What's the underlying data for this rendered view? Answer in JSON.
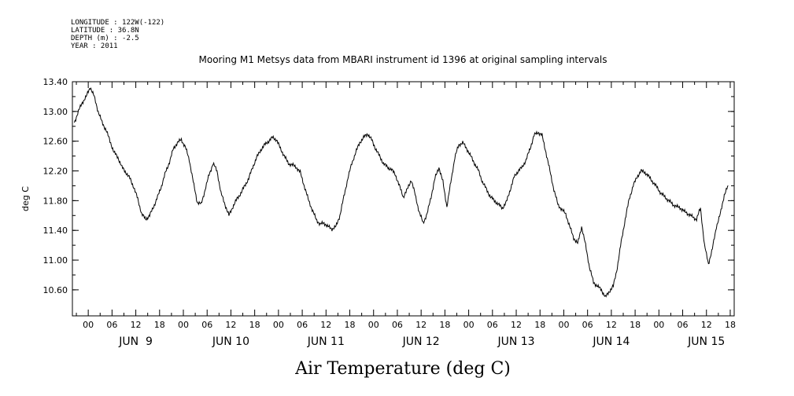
{
  "header": {
    "meta": [
      "LONGITUDE : 122W(-122)",
      "LATITUDE : 36.8N",
      "DEPTH (m) : -2.5",
      "YEAR : 2011"
    ],
    "title": "Mooring M1 Metsys data from MBARI instrument id 1396 at original sampling intervals"
  },
  "chart_data": {
    "type": "line",
    "title": "Mooring M1 Metsys data from MBARI instrument id 1396 at original sampling intervals",
    "xlabel": "Air Temperature (deg C)",
    "ylabel": "deg C",
    "x_unit": "hours since 2011-06-09 00:00",
    "xlim": [
      -4,
      163
    ],
    "ylim": [
      10.25,
      13.4
    ],
    "y_ticks": [
      13.4,
      13.0,
      12.6,
      12.2,
      11.8,
      11.4,
      11.0,
      10.6
    ],
    "y_tick_labels": [
      "13.40",
      "13.00",
      "12.60",
      "12.20",
      "11.80",
      "11.40",
      "11.00",
      "10.60"
    ],
    "x_ticks": [
      0,
      6,
      12,
      18,
      24,
      30,
      36,
      42,
      48,
      54,
      60,
      66,
      72,
      78,
      84,
      90,
      96,
      102,
      108,
      114,
      120,
      126,
      132,
      138,
      144,
      150,
      156,
      162
    ],
    "x_tick_labels": [
      "00",
      "06",
      "12",
      "18",
      "00",
      "06",
      "12",
      "18",
      "00",
      "06",
      "12",
      "18",
      "00",
      "06",
      "12",
      "18",
      "00",
      "06",
      "12",
      "18",
      "00",
      "06",
      "12",
      "18",
      "00",
      "06",
      "12",
      "18"
    ],
    "day_labels": [
      {
        "label": "JUN  9",
        "center": 12
      },
      {
        "label": "JUN 10",
        "center": 36
      },
      {
        "label": "JUN 11",
        "center": 60
      },
      {
        "label": "JUN 12",
        "center": 84
      },
      {
        "label": "JUN 13",
        "center": 108
      },
      {
        "label": "JUN 14",
        "center": 132
      },
      {
        "label": "JUN 15",
        "center": 156
      }
    ],
    "grid": false,
    "series": [
      {
        "color": "#000000",
        "points": [
          [
            -3.5,
            12.85
          ],
          [
            -2.5,
            13.0
          ],
          [
            -1.5,
            13.12
          ],
          [
            -0.5,
            13.2
          ],
          [
            0.5,
            13.33
          ],
          [
            1.5,
            13.2
          ],
          [
            2.5,
            13.0
          ],
          [
            3.5,
            12.85
          ],
          [
            4.5,
            12.75
          ],
          [
            5.5,
            12.6
          ],
          [
            6.5,
            12.45
          ],
          [
            7.5,
            12.38
          ],
          [
            8.5,
            12.25
          ],
          [
            9.5,
            12.18
          ],
          [
            10.5,
            12.1
          ],
          [
            11.5,
            11.98
          ],
          [
            12.5,
            11.82
          ],
          [
            13.5,
            11.62
          ],
          [
            14.5,
            11.55
          ],
          [
            15.5,
            11.6
          ],
          [
            16.5,
            11.72
          ],
          [
            17.5,
            11.85
          ],
          [
            18.5,
            12.0
          ],
          [
            19.5,
            12.18
          ],
          [
            20.5,
            12.32
          ],
          [
            21.5,
            12.5
          ],
          [
            22.5,
            12.58
          ],
          [
            23.5,
            12.62
          ],
          [
            24.5,
            12.52
          ],
          [
            25.5,
            12.35
          ],
          [
            26.5,
            12.05
          ],
          [
            27.5,
            11.78
          ],
          [
            28.5,
            11.75
          ],
          [
            29.5,
            11.95
          ],
          [
            30.5,
            12.15
          ],
          [
            31.5,
            12.3
          ],
          [
            32.5,
            12.2
          ],
          [
            33.5,
            11.9
          ],
          [
            34.5,
            11.75
          ],
          [
            35.5,
            11.6
          ],
          [
            36.5,
            11.72
          ],
          [
            37.5,
            11.82
          ],
          [
            38.5,
            11.9
          ],
          [
            39.5,
            12.0
          ],
          [
            40.5,
            12.1
          ],
          [
            41.5,
            12.25
          ],
          [
            42.5,
            12.38
          ],
          [
            43.5,
            12.48
          ],
          [
            44.5,
            12.55
          ],
          [
            45.5,
            12.6
          ],
          [
            46.5,
            12.65
          ],
          [
            47.5,
            12.62
          ],
          [
            48.5,
            12.5
          ],
          [
            49.5,
            12.4
          ],
          [
            50.5,
            12.3
          ],
          [
            51.5,
            12.28
          ],
          [
            52.5,
            12.25
          ],
          [
            53.5,
            12.18
          ],
          [
            54.5,
            12.0
          ],
          [
            55.5,
            11.82
          ],
          [
            56.5,
            11.68
          ],
          [
            57.5,
            11.55
          ],
          [
            58.5,
            11.48
          ],
          [
            59.5,
            11.5
          ],
          [
            60.5,
            11.45
          ],
          [
            61.5,
            11.42
          ],
          [
            62.5,
            11.45
          ],
          [
            63.5,
            11.6
          ],
          [
            64.5,
            11.85
          ],
          [
            65.5,
            12.1
          ],
          [
            66.5,
            12.3
          ],
          [
            67.5,
            12.45
          ],
          [
            68.5,
            12.58
          ],
          [
            69.5,
            12.65
          ],
          [
            70.5,
            12.7
          ],
          [
            71.5,
            12.62
          ],
          [
            72.5,
            12.5
          ],
          [
            73.5,
            12.4
          ],
          [
            74.5,
            12.3
          ],
          [
            75.5,
            12.25
          ],
          [
            76.5,
            12.22
          ],
          [
            77.5,
            12.15
          ],
          [
            78.5,
            12.0
          ],
          [
            79.5,
            11.85
          ],
          [
            80.5,
            11.95
          ],
          [
            81.5,
            12.08
          ],
          [
            82.5,
            11.88
          ],
          [
            83.5,
            11.65
          ],
          [
            84.5,
            11.5
          ],
          [
            85.5,
            11.62
          ],
          [
            86.5,
            11.85
          ],
          [
            87.5,
            12.1
          ],
          [
            88.5,
            12.25
          ],
          [
            89.5,
            12.05
          ],
          [
            90.5,
            11.72
          ],
          [
            91.5,
            12.05
          ],
          [
            92.5,
            12.38
          ],
          [
            93.5,
            12.55
          ],
          [
            94.5,
            12.58
          ],
          [
            95.5,
            12.5
          ],
          [
            96.5,
            12.4
          ],
          [
            97.5,
            12.3
          ],
          [
            98.5,
            12.2
          ],
          [
            99.5,
            12.05
          ],
          [
            100.5,
            11.95
          ],
          [
            101.5,
            11.85
          ],
          [
            102.5,
            11.8
          ],
          [
            103.5,
            11.75
          ],
          [
            104.5,
            11.7
          ],
          [
            105.5,
            11.78
          ],
          [
            106.5,
            11.95
          ],
          [
            107.5,
            12.12
          ],
          [
            108.5,
            12.2
          ],
          [
            109.5,
            12.25
          ],
          [
            110.5,
            12.35
          ],
          [
            111.5,
            12.5
          ],
          [
            112.5,
            12.68
          ],
          [
            113.5,
            12.72
          ],
          [
            114.5,
            12.68
          ],
          [
            115.5,
            12.45
          ],
          [
            116.5,
            12.2
          ],
          [
            117.5,
            11.95
          ],
          [
            118.5,
            11.75
          ],
          [
            119.5,
            11.68
          ],
          [
            120.5,
            11.62
          ],
          [
            121.5,
            11.45
          ],
          [
            122.5,
            11.3
          ],
          [
            123.5,
            11.22
          ],
          [
            124.5,
            11.45
          ],
          [
            125.5,
            11.2
          ],
          [
            126.5,
            10.9
          ],
          [
            127.5,
            10.7
          ],
          [
            128.5,
            10.65
          ],
          [
            129.5,
            10.6
          ],
          [
            130.5,
            10.5
          ],
          [
            131.5,
            10.58
          ],
          [
            132.5,
            10.65
          ],
          [
            133.5,
            10.9
          ],
          [
            134.5,
            11.25
          ],
          [
            135.5,
            11.55
          ],
          [
            136.5,
            11.82
          ],
          [
            137.5,
            12.0
          ],
          [
            138.5,
            12.12
          ],
          [
            139.5,
            12.2
          ],
          [
            140.5,
            12.18
          ],
          [
            141.5,
            12.12
          ],
          [
            142.5,
            12.05
          ],
          [
            143.5,
            11.98
          ],
          [
            144.5,
            11.9
          ],
          [
            145.5,
            11.85
          ],
          [
            146.5,
            11.8
          ],
          [
            147.5,
            11.75
          ],
          [
            148.5,
            11.72
          ],
          [
            149.5,
            11.7
          ],
          [
            150.5,
            11.65
          ],
          [
            151.5,
            11.62
          ],
          [
            152.5,
            11.58
          ],
          [
            153.5,
            11.55
          ],
          [
            154.5,
            11.7
          ],
          [
            155.5,
            11.2
          ],
          [
            156.5,
            10.95
          ],
          [
            157.5,
            11.15
          ],
          [
            158.5,
            11.45
          ],
          [
            159.5,
            11.62
          ],
          [
            160.5,
            11.88
          ],
          [
            161.5,
            12.0
          ]
        ]
      }
    ]
  }
}
